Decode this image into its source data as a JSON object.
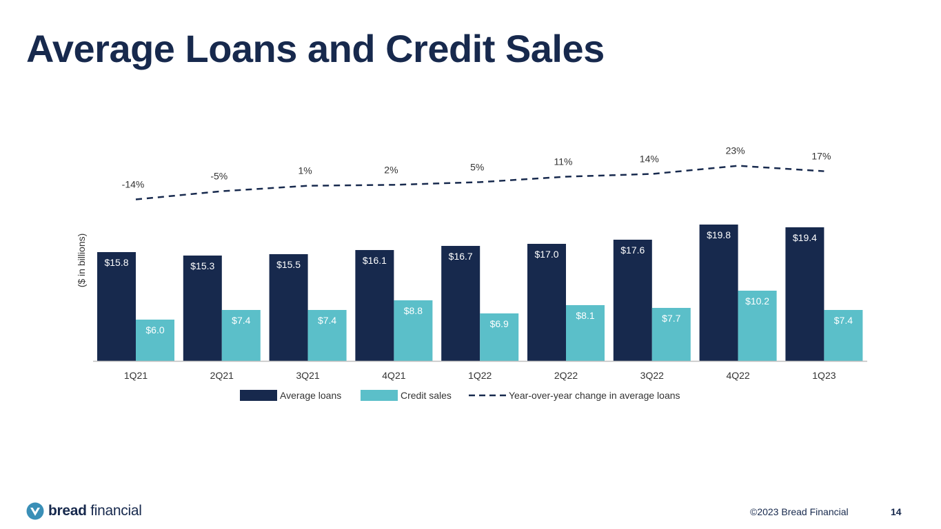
{
  "page": {
    "title": "Average Loans and Credit Sales",
    "copyright": "©2023 Bread Financial",
    "page_number": "14",
    "logo_bold": "bread",
    "logo_light": "financial",
    "logo_icon": "bread-financial-logo-icon"
  },
  "colors": {
    "title": "#17294d",
    "average_loans": "#17294d",
    "credit_sales": "#5bbfc9",
    "line": "#17294d"
  },
  "chart_data": {
    "type": "bar",
    "ylabel": "($  in billions)",
    "categories": [
      "1Q21",
      "2Q21",
      "3Q21",
      "4Q21",
      "1Q22",
      "2Q22",
      "3Q22",
      "4Q22",
      "1Q23"
    ],
    "series": [
      {
        "name": "Average loans",
        "values": [
          15.8,
          15.3,
          15.5,
          16.1,
          16.7,
          17.0,
          17.6,
          19.8,
          19.4
        ],
        "labels": [
          "$15.8",
          "$15.3",
          "$15.5",
          "$16.1",
          "$16.7",
          "$17.0",
          "$17.6",
          "$19.8",
          "$19.4"
        ]
      },
      {
        "name": "Credit sales",
        "values": [
          6.0,
          7.4,
          7.4,
          8.8,
          6.9,
          8.1,
          7.7,
          10.2,
          7.4
        ],
        "labels": [
          "$6.0",
          "$7.4",
          "$7.4",
          "$8.8",
          "$6.9",
          "$8.1",
          "$7.7",
          "$10.2",
          "$7.4"
        ]
      }
    ],
    "line_series": {
      "name": "Year-over-year change in average loans",
      "style": "dashed",
      "values": [
        -14,
        -5,
        1,
        2,
        5,
        11,
        14,
        23,
        17
      ],
      "labels": [
        "-14%",
        "-5%",
        "1%",
        "2%",
        "5%",
        "11%",
        "14%",
        "23%",
        "17%"
      ],
      "ylim": [
        -30,
        30
      ]
    },
    "ylim": [
      0,
      20
    ],
    "grid": false,
    "legend": "bottom"
  }
}
